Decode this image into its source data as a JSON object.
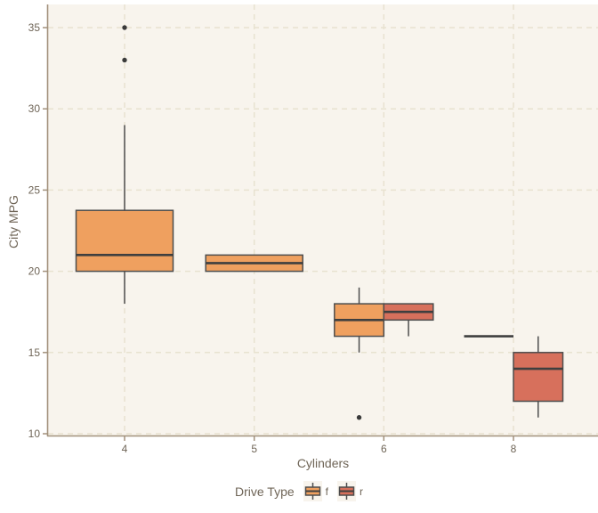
{
  "chart_data": {
    "type": "boxplot",
    "title": "",
    "xlabel": "Cylinders",
    "ylabel": "City MPG",
    "categories": [
      "4",
      "5",
      "6",
      "8"
    ],
    "yticks": [
      10,
      15,
      20,
      25,
      30,
      35
    ],
    "ylim": [
      10,
      35
    ],
    "grid": "dashed-both-directions",
    "legend": {
      "title": "Drive Type",
      "position": "bottom",
      "entries": [
        {
          "label": "f",
          "color": "#efa05f"
        },
        {
          "label": "r",
          "color": "#d7705c"
        }
      ]
    },
    "series": [
      {
        "name": "f",
        "color": "#efa05f",
        "boxes": [
          {
            "x": "4",
            "min": 18,
            "q1": 20,
            "median": 21,
            "q3": 23.75,
            "max": 29,
            "outliers": [
              33,
              35
            ]
          },
          {
            "x": "5",
            "min": 20,
            "q1": 20,
            "median": 20.5,
            "q3": 21,
            "max": 21,
            "outliers": []
          },
          {
            "x": "6",
            "min": 15,
            "q1": 16,
            "median": 17,
            "q3": 18,
            "max": 19,
            "outliers": [
              11
            ]
          },
          {
            "x": "8",
            "min": 16,
            "q1": 16,
            "median": 16,
            "q3": 16,
            "max": 16,
            "outliers": []
          }
        ]
      },
      {
        "name": "r",
        "color": "#d7705c",
        "boxes": [
          {
            "x": "6",
            "min": 16,
            "q1": 17,
            "median": 17.5,
            "q3": 18,
            "max": 18,
            "outliers": []
          },
          {
            "x": "8",
            "min": 11,
            "q1": 12,
            "median": 14,
            "q3": 15,
            "max": 16,
            "outliers": []
          }
        ]
      }
    ],
    "colors": {
      "panel_background": "#f8f4ed",
      "outer_background": "#ffffff",
      "gridline": "#e8e2d0",
      "axis_line": "#a2917c",
      "box_border": "#4d4d4d",
      "median_line": "#3f3f3f",
      "outlier_point": "#3a3a3a",
      "text": "#6f6557"
    }
  }
}
